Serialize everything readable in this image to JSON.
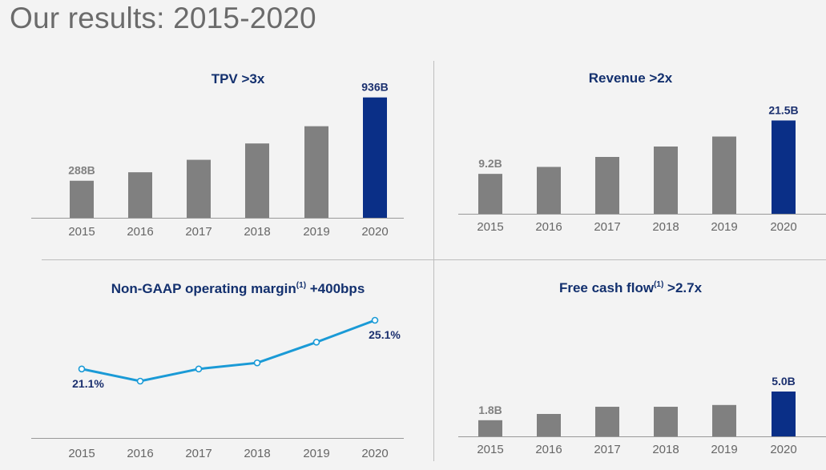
{
  "page": {
    "title": "Our results: 2015-2020"
  },
  "colors": {
    "bar_grey": "#808080",
    "bar_highlight": "#0a2f87",
    "line": "#1a9ad6",
    "title": "#13306e"
  },
  "chart_data": [
    {
      "id": "tpv",
      "type": "bar",
      "title": "TPV >3x",
      "categories": [
        "2015",
        "2016",
        "2017",
        "2018",
        "2019",
        "2020"
      ],
      "values": [
        288,
        354,
        451,
        578,
        712,
        936
      ],
      "labels": [
        "288B",
        "",
        "",
        "",
        "",
        "936B"
      ],
      "highlight_index": 5
    },
    {
      "id": "revenue",
      "type": "bar",
      "title": "Revenue >2x",
      "categories": [
        "2015",
        "2016",
        "2017",
        "2018",
        "2019",
        "2020"
      ],
      "values": [
        9.2,
        10.8,
        13.1,
        15.5,
        17.8,
        21.5
      ],
      "labels": [
        "9.2B",
        "",
        "",
        "",
        "",
        "21.5B"
      ],
      "highlight_index": 5
    },
    {
      "id": "margin",
      "type": "line",
      "title": "Non-GAAP operating margin",
      "title_sup": "(1)",
      "title_suffix": " +400bps",
      "categories": [
        "2015",
        "2016",
        "2017",
        "2018",
        "2019",
        "2020"
      ],
      "values": [
        21.1,
        20.1,
        21.1,
        21.6,
        23.3,
        25.1
      ],
      "labels": [
        "21.1%",
        "",
        "",
        "",
        "",
        "25.1%"
      ]
    },
    {
      "id": "fcf",
      "type": "bar",
      "title": "Free cash flow",
      "title_sup": "(1)",
      "title_suffix": " >2.7x",
      "categories": [
        "2015",
        "2016",
        "2017",
        "2018",
        "2019",
        "2020"
      ],
      "values": [
        1.8,
        2.5,
        3.3,
        3.3,
        3.5,
        5.0
      ],
      "labels": [
        "1.8B",
        "",
        "",
        "",
        "",
        "5.0B"
      ],
      "highlight_index": 5
    }
  ]
}
